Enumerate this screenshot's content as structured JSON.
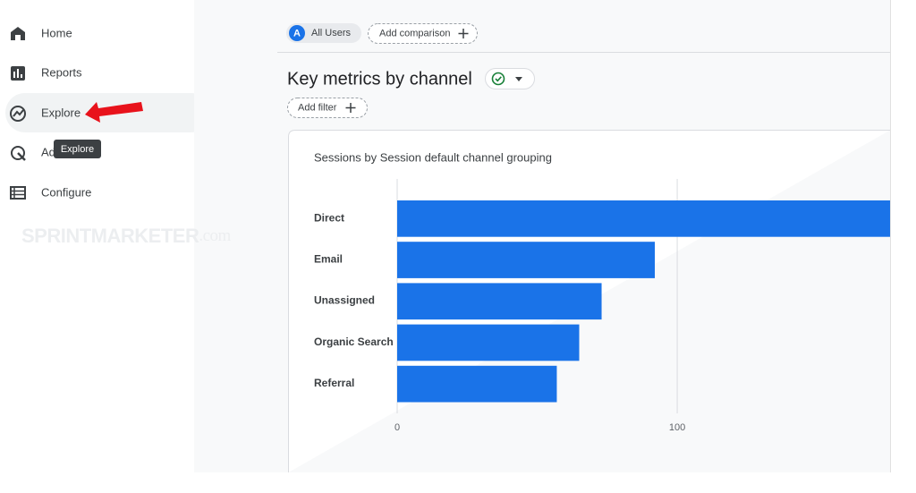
{
  "sidebar": {
    "items": [
      "Home",
      "Reports",
      "Explore",
      "Advertising",
      "Configure"
    ]
  },
  "tooltip": "Explore",
  "watermark": {
    "brand": "SPRINTMARKETER",
    "suffix": ".com"
  },
  "toolbar": {
    "segment_initial": "A",
    "segment": "All Users",
    "add_comparison": "Add comparison"
  },
  "report": {
    "title": "Key metrics by channel",
    "add_filter": "Add filter"
  },
  "chart_data": {
    "type": "bar",
    "orientation": "horizontal",
    "title": "Sessions by Session default channel grouping",
    "categories": [
      "Direct",
      "Email",
      "Unassigned",
      "Organic Search",
      "Referral"
    ],
    "values": [
      176,
      92,
      73,
      65,
      57
    ],
    "color": "#1a73e8",
    "xlim": [
      0,
      176
    ],
    "xticks": [
      0,
      100
    ],
    "grid": true
  }
}
